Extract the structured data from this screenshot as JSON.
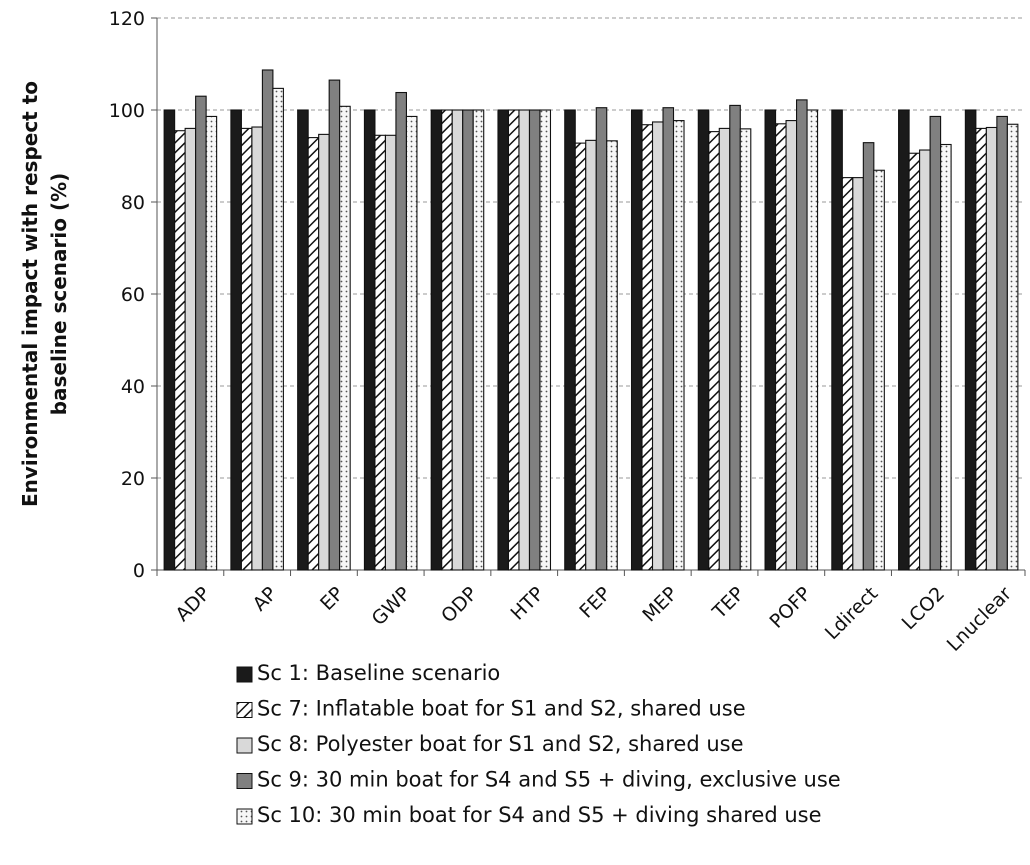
{
  "chart_data": {
    "type": "bar",
    "title": "",
    "xlabel": "",
    "ylabel": [
      "Environmental impact with respect to",
      "baseline scenario (%)"
    ],
    "ylim": [
      0,
      120
    ],
    "yticks": [
      0,
      20,
      40,
      60,
      80,
      100,
      120
    ],
    "grid": "horizontal dashed",
    "legend_placement": "bottom",
    "categories": [
      "ADP",
      "AP",
      "EP",
      "GWP",
      "ODP",
      "HTP",
      "FEP",
      "MEP",
      "TEP",
      "POFP",
      "Ldirect",
      "LCO2",
      "Lnuclear"
    ],
    "series": [
      {
        "name": "Sc 1: Baseline scenario",
        "color": "#1a1a1a",
        "pattern": "solid",
        "values": [
          100,
          100,
          100,
          100,
          100,
          100,
          100,
          100,
          100,
          100,
          100,
          100,
          100
        ]
      },
      {
        "name": "Sc 7: Inflatable boat for S1 and S2, shared use",
        "color": "#ffffff",
        "pattern": "diagonal-hatch",
        "values": [
          95.5,
          96,
          94,
          94.5,
          100,
          100,
          92.8,
          96.8,
          95.3,
          97,
          85.3,
          90.6,
          96
        ]
      },
      {
        "name": "Sc 8: Polyester boat for S1 and S2, shared use",
        "color": "#d9d9d9",
        "pattern": "solid",
        "values": [
          96,
          96.3,
          94.7,
          94.5,
          100,
          100,
          93.4,
          97.4,
          96,
          97.7,
          85.3,
          91.3,
          96.2
        ]
      },
      {
        "name": "Sc 9: 30 min boat for S4 and S5 + diving, exclusive use",
        "color": "#808080",
        "pattern": "solid",
        "values": [
          103,
          108.7,
          106.5,
          103.8,
          100,
          100,
          100.5,
          100.5,
          101,
          102.2,
          92.9,
          98.6,
          98.6
        ]
      },
      {
        "name": "Sc 10: 30 min boat for S4 and S5 + diving shared use",
        "color": "#f4f4f4",
        "pattern": "dots",
        "values": [
          98.6,
          104.7,
          100.8,
          98.6,
          100,
          100,
          93.3,
          97.7,
          95.9,
          100,
          86.9,
          92.5,
          96.9
        ]
      }
    ]
  }
}
